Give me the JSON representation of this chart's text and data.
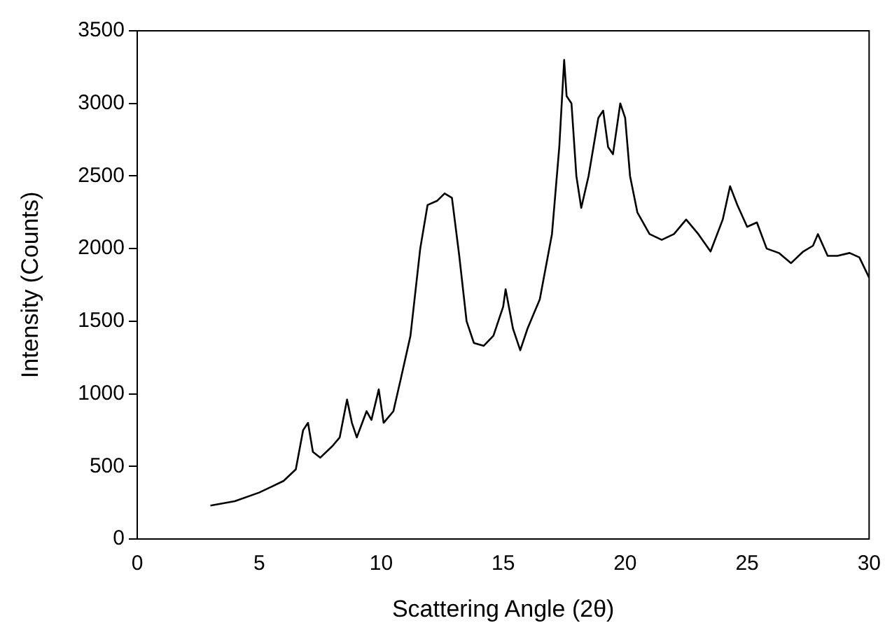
{
  "chart_data": {
    "type": "line",
    "xlabel": "Scattering Angle (2θ)",
    "ylabel": "Intensity (Counts)",
    "xlim": [
      0,
      30
    ],
    "xticks": [
      0,
      5,
      10,
      15,
      20,
      25,
      30
    ],
    "ylim": [
      0,
      3500
    ],
    "yticks": [
      0,
      500,
      1000,
      1500,
      2000,
      2500,
      3000,
      3500
    ],
    "grid": false,
    "legend": false,
    "marker": "none",
    "line_style": "solid",
    "series": [
      {
        "color": "#000000",
        "x": [
          3.0,
          4.0,
          5.0,
          5.5,
          6.0,
          6.5,
          6.8,
          7.0,
          7.2,
          7.5,
          8.0,
          8.3,
          8.6,
          8.8,
          9.0,
          9.4,
          9.6,
          9.9,
          10.1,
          10.5,
          10.8,
          11.2,
          11.6,
          11.9,
          12.3,
          12.6,
          12.9,
          13.2,
          13.5,
          13.8,
          14.2,
          14.6,
          15.0,
          15.1,
          15.4,
          15.7,
          16.0,
          16.5,
          17.0,
          17.3,
          17.5,
          17.6,
          17.8,
          18.0,
          18.2,
          18.5,
          18.9,
          19.1,
          19.3,
          19.5,
          19.8,
          20.0,
          20.2,
          20.5,
          21.0,
          21.5,
          22.0,
          22.5,
          23.0,
          23.5,
          24.0,
          24.3,
          24.6,
          25.0,
          25.4,
          25.8,
          26.3,
          26.8,
          27.3,
          27.7,
          27.9,
          28.3,
          28.7,
          29.2,
          29.6,
          30.0
        ],
        "values": [
          230,
          260,
          320,
          360,
          400,
          480,
          750,
          800,
          600,
          560,
          640,
          700,
          960,
          800,
          700,
          880,
          820,
          1030,
          800,
          880,
          1100,
          1400,
          2000,
          2300,
          2330,
          2380,
          2350,
          1950,
          1500,
          1350,
          1330,
          1400,
          1600,
          1720,
          1450,
          1300,
          1450,
          1650,
          2100,
          2700,
          3300,
          3050,
          3000,
          2500,
          2280,
          2500,
          2900,
          2950,
          2700,
          2650,
          3000,
          2900,
          2500,
          2250,
          2100,
          2060,
          2100,
          2200,
          2100,
          1980,
          2200,
          2430,
          2300,
          2150,
          2180,
          2000,
          1970,
          1900,
          1980,
          2020,
          2100,
          1950,
          1950,
          1970,
          1940,
          1800
        ]
      }
    ]
  }
}
